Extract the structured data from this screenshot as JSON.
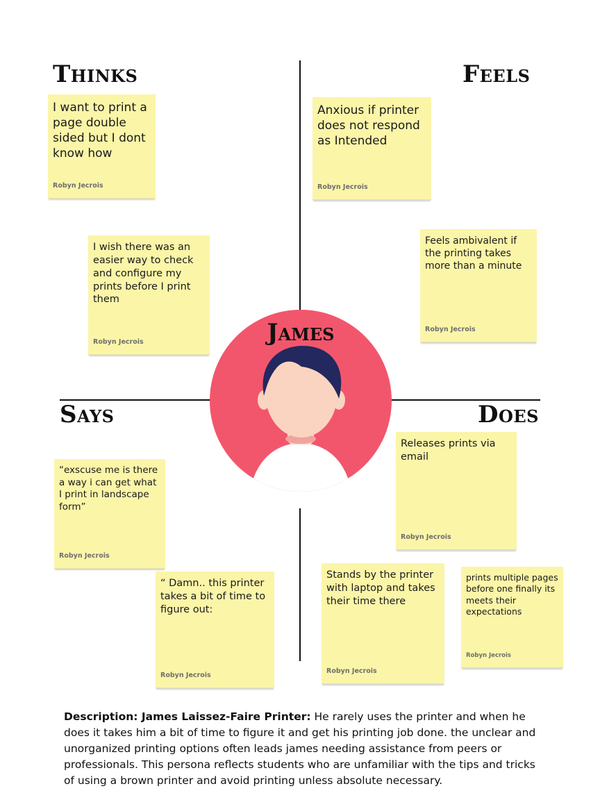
{
  "quadrants": {
    "thinks": "Thinks",
    "feels": "Feels",
    "says": "Says",
    "does": "Does"
  },
  "persona": {
    "name": "James"
  },
  "notes": [
    {
      "text": "I want to print a page double sided but I dont know how",
      "author": "Robyn Jecrois"
    },
    {
      "text": "I wish there was an easier way to check and configure my prints before I print them",
      "author": "Robyn Jecrois"
    },
    {
      "text": "Anxious if printer does not respond as Intended",
      "author": "Robyn Jecrois"
    },
    {
      "text": "Feels ambivalent if the printing takes more than a minute",
      "author": "Robyn Jecrois"
    },
    {
      "text": "“exscuse me is there a way i can get what I print in landscape form”",
      "author": "Robyn Jecrois"
    },
    {
      "text": "“ Damn.. this printer takes a bit of time to figure out:",
      "author": "Robyn Jecrois"
    },
    {
      "text": "Releases prints via email",
      "author": "Robyn Jecrois"
    },
    {
      "text": "Stands by the printer with laptop and takes their time there",
      "author": "Robyn Jecrois"
    },
    {
      "text": "prints multiple pages before one finally its meets their expectations",
      "author": "Robyn Jecrois"
    }
  ],
  "description": {
    "label": "Description: James Laissez-Faire Printer:",
    "body": " He rarely uses the printer and when he does it takes him a bit of time to figure it and get his printing job done. the unclear and unorganized printing options often leads james needing assistance from peers or professionals. This persona reflects students who are unfamiliar with the tips and tricks of using a brown printer and avoid printing unless absolute necessary."
  },
  "colors": {
    "note": "#fbf5a8",
    "avatar_bg": "#f2566c",
    "hair": "#23285e",
    "skin": "#fad4c0"
  }
}
